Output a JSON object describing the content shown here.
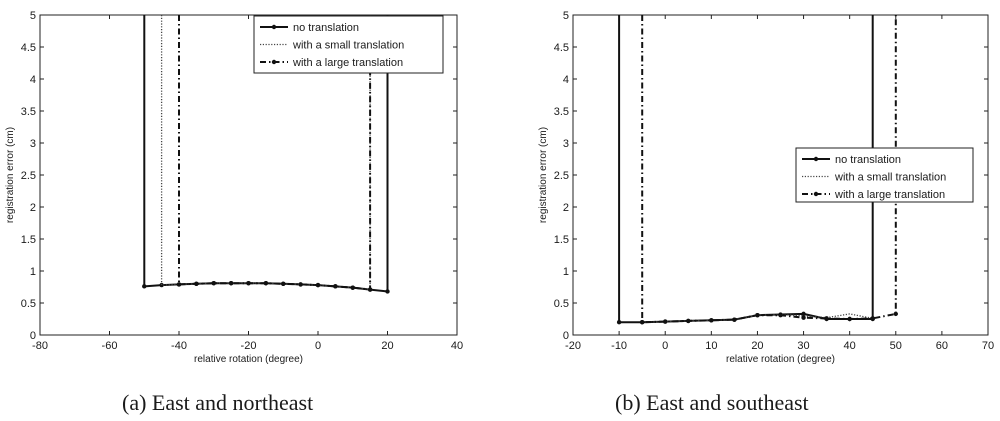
{
  "chart_data": [
    {
      "type": "line",
      "caption": "(a) East and northeast",
      "xlabel": "relative rotation (degree)",
      "ylabel": "registration error (cm)",
      "xlim": [
        -80,
        40
      ],
      "ylim": [
        0,
        5
      ],
      "xticks": [
        "-80",
        "-60",
        "-40",
        "-20",
        "0",
        "20",
        "40"
      ],
      "yticks": [
        "0",
        "0.5",
        "1",
        "1.5",
        "2",
        "2.5",
        "3",
        "3.5",
        "4",
        "4.5",
        "5"
      ],
      "grid": false,
      "legend_position": "top-right",
      "series": [
        {
          "name": "no translation",
          "style": "solid-marker",
          "points": [
            [
              -50,
              5
            ],
            [
              -50,
              0.76
            ],
            [
              -45,
              0.78
            ],
            [
              -40,
              0.79
            ],
            [
              -35,
              0.8
            ],
            [
              -30,
              0.81
            ],
            [
              -25,
              0.81
            ],
            [
              -20,
              0.81
            ],
            [
              -15,
              0.81
            ],
            [
              -10,
              0.8
            ],
            [
              -5,
              0.79
            ],
            [
              0,
              0.78
            ],
            [
              5,
              0.76
            ],
            [
              10,
              0.74
            ],
            [
              15,
              0.71
            ],
            [
              20,
              0.68
            ],
            [
              20,
              5
            ]
          ]
        },
        {
          "name": "with a small translation",
          "style": "dotted",
          "points": [
            [
              -45,
              5
            ],
            [
              -45,
              0.78
            ],
            [
              -40,
              0.79
            ],
            [
              -35,
              0.8
            ],
            [
              -30,
              0.81
            ],
            [
              -25,
              0.81
            ],
            [
              -20,
              0.81
            ],
            [
              -15,
              0.81
            ],
            [
              -10,
              0.8
            ],
            [
              -5,
              0.79
            ],
            [
              0,
              0.78
            ],
            [
              5,
              0.76
            ],
            [
              10,
              0.74
            ],
            [
              15,
              0.71
            ],
            [
              15,
              5
            ]
          ]
        },
        {
          "name": "with a large translation",
          "style": "dashdot-marker",
          "points": [
            [
              -40,
              5
            ],
            [
              -40,
              0.79
            ],
            [
              -35,
              0.8
            ],
            [
              -30,
              0.81
            ],
            [
              -25,
              0.81
            ],
            [
              -20,
              0.81
            ],
            [
              -15,
              0.81
            ],
            [
              -10,
              0.8
            ],
            [
              -5,
              0.79
            ],
            [
              0,
              0.78
            ],
            [
              5,
              0.76
            ],
            [
              10,
              0.74
            ],
            [
              15,
              0.71
            ],
            [
              15,
              5
            ]
          ]
        }
      ]
    },
    {
      "type": "line",
      "caption": "(b) East and southeast",
      "xlabel": "relative rotation (degree)",
      "ylabel": "registration error (cm)",
      "xlim": [
        -20,
        70
      ],
      "ylim": [
        0,
        5
      ],
      "xticks": [
        "-20",
        "-10",
        "0",
        "10",
        "20",
        "30",
        "40",
        "50",
        "60",
        "70"
      ],
      "yticks": [
        "0",
        "0.5",
        "1",
        "1.5",
        "2",
        "2.5",
        "3",
        "3.5",
        "4",
        "4.5",
        "5"
      ],
      "grid": false,
      "legend_position": "center-right",
      "series": [
        {
          "name": "no translation",
          "style": "solid-marker",
          "points": [
            [
              -10,
              5
            ],
            [
              -10,
              0.2
            ],
            [
              -5,
              0.2
            ],
            [
              0,
              0.21
            ],
            [
              5,
              0.22
            ],
            [
              10,
              0.23
            ],
            [
              15,
              0.24
            ],
            [
              20,
              0.31
            ],
            [
              25,
              0.32
            ],
            [
              30,
              0.33
            ],
            [
              35,
              0.25
            ],
            [
              40,
              0.25
            ],
            [
              45,
              0.25
            ],
            [
              45,
              5
            ]
          ]
        },
        {
          "name": "with a small translation",
          "style": "dotted",
          "points": [
            [
              -5,
              0.2
            ],
            [
              0,
              0.21
            ],
            [
              5,
              0.22
            ],
            [
              10,
              0.23
            ],
            [
              15,
              0.24
            ],
            [
              20,
              0.31
            ],
            [
              25,
              0.32
            ],
            [
              30,
              0.3
            ],
            [
              35,
              0.27
            ],
            [
              40,
              0.33
            ],
            [
              45,
              0.26
            ]
          ]
        },
        {
          "name": "with a large translation",
          "style": "dashdot-marker",
          "points": [
            [
              -5,
              5
            ],
            [
              -5,
              0.2
            ],
            [
              0,
              0.21
            ],
            [
              5,
              0.22
            ],
            [
              10,
              0.23
            ],
            [
              15,
              0.24
            ],
            [
              20,
              0.31
            ],
            [
              25,
              0.31
            ],
            [
              30,
              0.27
            ],
            [
              35,
              0.26
            ],
            [
              40,
              0.25
            ],
            [
              45,
              0.26
            ],
            [
              50,
              0.33
            ],
            [
              50,
              5
            ]
          ]
        }
      ]
    }
  ]
}
